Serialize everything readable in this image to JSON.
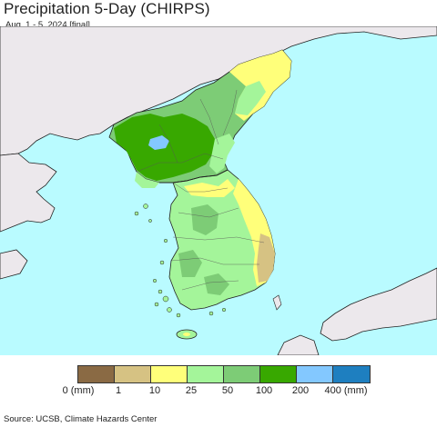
{
  "header": {
    "title": "Precipitation 5-Day (CHIRPS)",
    "subtitle": "Aug. 1 - 5, 2024 [final]"
  },
  "legend": {
    "colors": [
      "#8a6a44",
      "#d6c283",
      "#ffff7a",
      "#a4f59a",
      "#7dcc76",
      "#38a800",
      "#83c8ff",
      "#1e7fc0"
    ],
    "labels": [
      "0 (mm)",
      "1",
      "10",
      "25",
      "50",
      "100",
      "200",
      "400 (mm)"
    ]
  },
  "map": {
    "sea_color": "#b9fbff",
    "land_no_data_color": "#ece8ec",
    "border_color": "#222222"
  },
  "footer": {
    "source": "Source: UCSB, Climate Hazards Center"
  }
}
